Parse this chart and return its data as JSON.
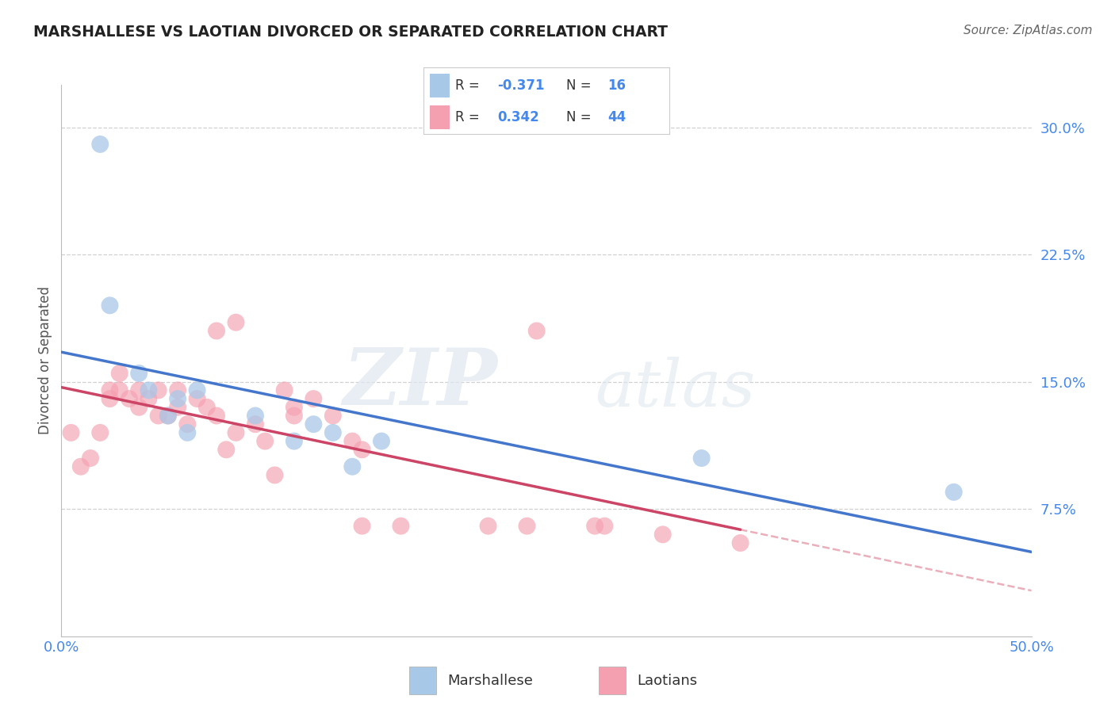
{
  "title": "MARSHALLESE VS LAOTIAN DIVORCED OR SEPARATED CORRELATION CHART",
  "source": "Source: ZipAtlas.com",
  "ylabel_text": "Divorced or Separated",
  "x_min": 0.0,
  "x_max": 0.5,
  "y_min": 0.0,
  "y_max": 0.325,
  "x_ticks": [
    0.0,
    0.125,
    0.25,
    0.375,
    0.5
  ],
  "x_tick_labels": [
    "0.0%",
    "",
    "",
    "",
    "50.0%"
  ],
  "y_ticks": [
    0.075,
    0.15,
    0.225,
    0.3
  ],
  "y_tick_labels": [
    "7.5%",
    "15.0%",
    "22.5%",
    "30.0%"
  ],
  "grid_color": "#d0d0d0",
  "background_color": "#ffffff",
  "watermark_zip": "ZIP",
  "watermark_atlas": "atlas",
  "legend_R_blue": "-0.371",
  "legend_N_blue": "16",
  "legend_R_pink": "0.342",
  "legend_N_pink": "44",
  "blue_scatter_color": "#a8c8e8",
  "pink_scatter_color": "#f4a0b0",
  "blue_line_color": "#4477cc",
  "pink_line_color": "#cc4466",
  "pink_dash_color": "#e8a0b0",
  "tick_color": "#4488ee",
  "label_color": "#555555",
  "marshallese_x": [
    0.02,
    0.025,
    0.04,
    0.045,
    0.055,
    0.06,
    0.065,
    0.07,
    0.1,
    0.12,
    0.13,
    0.14,
    0.15,
    0.165,
    0.33,
    0.46
  ],
  "marshallese_y": [
    0.29,
    0.195,
    0.155,
    0.145,
    0.13,
    0.14,
    0.12,
    0.145,
    0.13,
    0.115,
    0.125,
    0.12,
    0.1,
    0.115,
    0.105,
    0.085
  ],
  "laotian_x": [
    0.005,
    0.01,
    0.015,
    0.02,
    0.025,
    0.025,
    0.03,
    0.03,
    0.035,
    0.04,
    0.04,
    0.045,
    0.05,
    0.05,
    0.055,
    0.06,
    0.06,
    0.065,
    0.07,
    0.075,
    0.08,
    0.08,
    0.085,
    0.09,
    0.09,
    0.1,
    0.105,
    0.11,
    0.115,
    0.12,
    0.12,
    0.13,
    0.14,
    0.15,
    0.155,
    0.155,
    0.175,
    0.22,
    0.24,
    0.245,
    0.275,
    0.28,
    0.31,
    0.35
  ],
  "laotian_y": [
    0.12,
    0.1,
    0.105,
    0.12,
    0.145,
    0.14,
    0.155,
    0.145,
    0.14,
    0.145,
    0.135,
    0.14,
    0.145,
    0.13,
    0.13,
    0.135,
    0.145,
    0.125,
    0.14,
    0.135,
    0.13,
    0.18,
    0.11,
    0.12,
    0.185,
    0.125,
    0.115,
    0.095,
    0.145,
    0.135,
    0.13,
    0.14,
    0.13,
    0.115,
    0.11,
    0.065,
    0.065,
    0.065,
    0.065,
    0.18,
    0.065,
    0.065,
    0.06,
    0.055
  ]
}
